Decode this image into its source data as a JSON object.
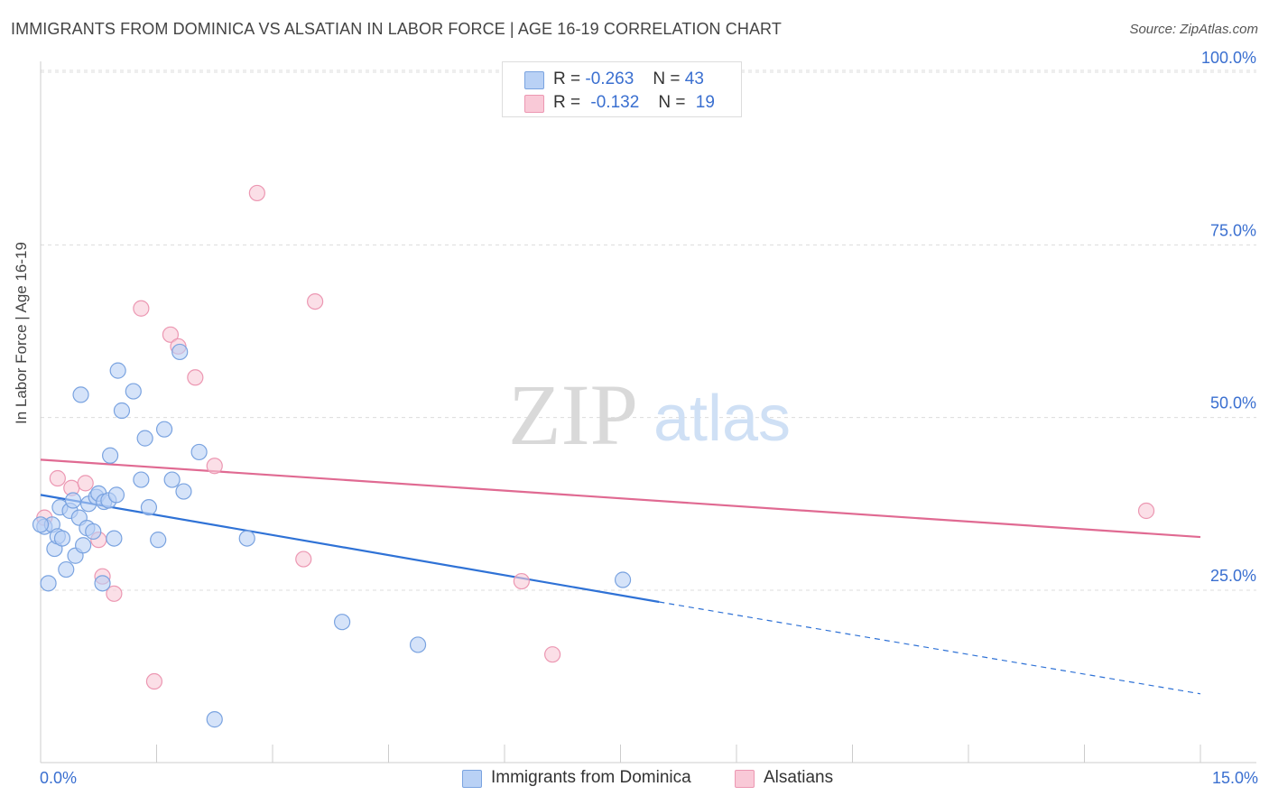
{
  "header": {
    "title": "IMMIGRANTS FROM DOMINICA VS ALSATIAN IN LABOR FORCE | AGE 16-19 CORRELATION CHART",
    "source": "Source: ZipAtlas.com"
  },
  "legend": {
    "series1": {
      "r_label": "R =",
      "r_value": "-0.263",
      "n_label": "N =",
      "n_value": "43"
    },
    "series2": {
      "r_label": "R =",
      "r_value": "-0.132",
      "n_label": "N =",
      "n_value": "19"
    }
  },
  "bottom_legend": {
    "series1": "Immigrants from Dominica",
    "series2": "Alsatians"
  },
  "x_axis_labels": {
    "min": "0.0%",
    "max": "15.0%"
  },
  "watermark": {
    "part1": "ZIP",
    "part2": "atlas"
  },
  "colors": {
    "series1_fill": "#b9d1f5",
    "series1_stroke": "#7aa3e0",
    "series1_line": "#2f72d6",
    "series2_fill": "#f9c9d7",
    "series2_stroke": "#ec97b2",
    "series2_line": "#e06a92",
    "tick_label": "#3a6fd0",
    "grid": "#dcdcdc"
  },
  "chart_data": {
    "type": "scatter",
    "title": "IMMIGRANTS FROM DOMINICA VS ALSATIAN IN LABOR FORCE | AGE 16-19 CORRELATION CHART",
    "xlabel": "",
    "ylabel": "In Labor Force | Age 16-19",
    "xlim": [
      0,
      15
    ],
    "ylim": [
      0,
      105
    ],
    "y_ticks": [
      {
        "value": 25,
        "label": "25.0%"
      },
      {
        "value": 50,
        "label": "50.0%"
      },
      {
        "value": 75,
        "label": "75.0%"
      },
      {
        "value": 100,
        "label": "100.0%"
      }
    ],
    "x_tick_values": [
      0,
      1.5,
      3,
      4.5,
      6,
      7.5,
      9,
      10.5,
      12,
      13.5,
      15
    ],
    "series": [
      {
        "name": "Immigrants from Dominica",
        "r": -0.263,
        "n": 43,
        "points": [
          [
            0.05,
            34.2
          ],
          [
            0.1,
            26.0
          ],
          [
            0.15,
            34.5
          ],
          [
            0.18,
            31.0
          ],
          [
            0.22,
            32.8
          ],
          [
            0.25,
            37.0
          ],
          [
            0.28,
            32.5
          ],
          [
            0.33,
            28.0
          ],
          [
            0.38,
            36.5
          ],
          [
            0.42,
            38.0
          ],
          [
            0.45,
            30.0
          ],
          [
            0.5,
            35.5
          ],
          [
            0.52,
            53.3
          ],
          [
            0.55,
            31.5
          ],
          [
            0.6,
            34.0
          ],
          [
            0.62,
            37.5
          ],
          [
            0.68,
            33.5
          ],
          [
            0.72,
            38.5
          ],
          [
            0.75,
            39.0
          ],
          [
            0.8,
            26.0
          ],
          [
            0.82,
            37.8
          ],
          [
            0.88,
            38.0
          ],
          [
            0.9,
            44.5
          ],
          [
            0.95,
            32.5
          ],
          [
            0.98,
            38.8
          ],
          [
            1.0,
            56.8
          ],
          [
            1.05,
            51.0
          ],
          [
            1.2,
            53.8
          ],
          [
            1.3,
            41.0
          ],
          [
            1.35,
            47.0
          ],
          [
            1.4,
            37.0
          ],
          [
            1.52,
            32.3
          ],
          [
            1.6,
            48.3
          ],
          [
            1.7,
            41.0
          ],
          [
            1.8,
            59.5
          ],
          [
            1.85,
            39.3
          ],
          [
            2.05,
            45.0
          ],
          [
            2.25,
            6.3
          ],
          [
            2.67,
            32.5
          ],
          [
            3.9,
            20.4
          ],
          [
            4.88,
            17.1
          ],
          [
            7.53,
            26.5
          ],
          [
            0.0,
            34.5
          ]
        ],
        "trend_solid": [
          [
            0.0,
            38.8
          ],
          [
            8.0,
            23.3
          ]
        ],
        "trend_dashed": [
          [
            8.0,
            23.3
          ],
          [
            15.0,
            10.0
          ]
        ]
      },
      {
        "name": "Alsatians",
        "r": -0.132,
        "n": 19,
        "points": [
          [
            0.05,
            35.5
          ],
          [
            0.22,
            41.2
          ],
          [
            0.4,
            39.8
          ],
          [
            0.58,
            40.5
          ],
          [
            0.75,
            32.3
          ],
          [
            0.8,
            27.0
          ],
          [
            0.95,
            24.5
          ],
          [
            1.3,
            65.8
          ],
          [
            1.47,
            11.8
          ],
          [
            1.68,
            62.0
          ],
          [
            1.78,
            60.3
          ],
          [
            2.0,
            55.8
          ],
          [
            2.25,
            43.0
          ],
          [
            2.8,
            82.5
          ],
          [
            3.4,
            29.5
          ],
          [
            3.55,
            66.8
          ],
          [
            6.22,
            26.3
          ],
          [
            6.62,
            15.7
          ],
          [
            14.3,
            36.5
          ]
        ],
        "trend_solid": [
          [
            0.0,
            43.9
          ],
          [
            15.0,
            32.7
          ]
        ]
      }
    ],
    "legend_position": "top-center"
  }
}
